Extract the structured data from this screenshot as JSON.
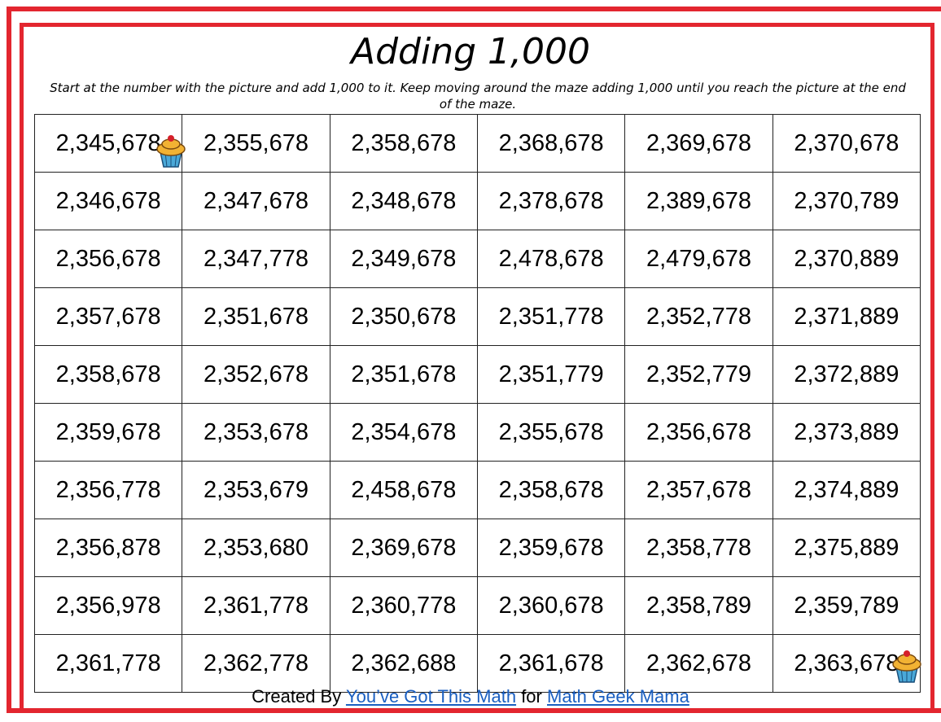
{
  "header": {
    "title": "Adding 1,000",
    "instructions": "Start at the number with the picture and add 1,000 to it. Keep moving around the maze adding 1,000 until you reach the picture at the end of the maze."
  },
  "table": {
    "rows": [
      [
        "2,345,678",
        "2,355,678",
        "2,358,678",
        "2,368,678",
        "2,369,678",
        "2,370,678"
      ],
      [
        "2,346,678",
        "2,347,678",
        "2,348,678",
        "2,378,678",
        "2,389,678",
        "2,370,789"
      ],
      [
        "2,356,678",
        "2,347,778",
        "2,349,678",
        "2,478,678",
        "2,479,678",
        "2,370,889"
      ],
      [
        "2,357,678",
        "2,351,678",
        "2,350,678",
        "2,351,778",
        "2,352,778",
        "2,371,889"
      ],
      [
        "2,358,678",
        "2,352,678",
        "2,351,678",
        "2,351,779",
        "2,352,779",
        "2,372,889"
      ],
      [
        "2,359,678",
        "2,353,678",
        "2,354,678",
        "2,355,678",
        "2,356,678",
        "2,373,889"
      ],
      [
        "2,356,778",
        "2,353,679",
        "2,458,678",
        "2,358,678",
        "2,357,678",
        "2,374,889"
      ],
      [
        "2,356,878",
        "2,353,680",
        "2,369,678",
        "2,359,678",
        "2,358,778",
        "2,375,889"
      ],
      [
        "2,356,978",
        "2,361,778",
        "2,360,778",
        "2,360,678",
        "2,358,789",
        "2,359,789"
      ],
      [
        "2,361,778",
        "2,362,778",
        "2,362,688",
        "2,361,678",
        "2,362,678",
        "2,363,678"
      ]
    ]
  },
  "footer": {
    "prefix": "Created By",
    "link1": "You’ve Got This Math",
    "middle": "for",
    "link2": "Math Geek Mama"
  }
}
